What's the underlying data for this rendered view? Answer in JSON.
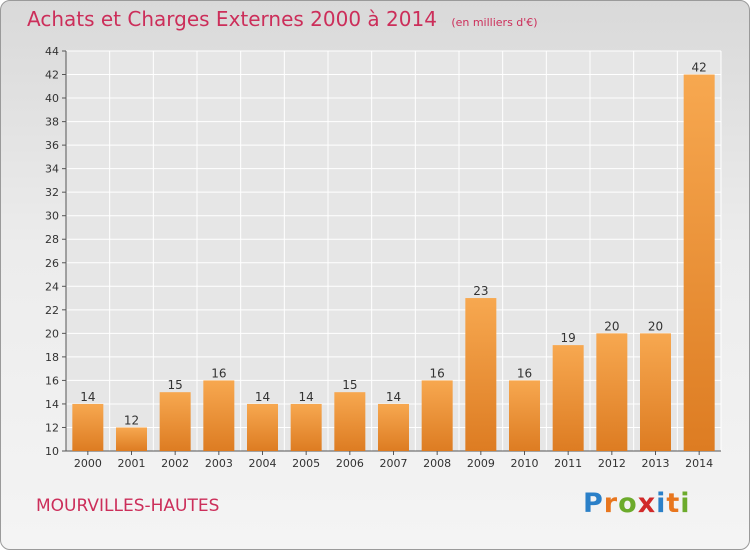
{
  "header": {
    "title": "Achats et Charges Externes 2000 à 2014",
    "subtitle": "(en milliers d'€)"
  },
  "footer": {
    "commune": "MOURVILLES-HAUTES",
    "logo_text": "Proxiti",
    "logo_colors": [
      "#2b80c8",
      "#e8761e",
      "#6cab2c",
      "#d12a2a",
      "#2b80c8",
      "#e8761e",
      "#6cab2c"
    ]
  },
  "chart_data": {
    "type": "bar",
    "title": "Achats et Charges Externes 2000 à 2014",
    "subtitle": "(en milliers d'€)",
    "categories": [
      "2000",
      "2001",
      "2002",
      "2003",
      "2004",
      "2005",
      "2006",
      "2007",
      "2008",
      "2009",
      "2010",
      "2011",
      "2012",
      "2013",
      "2014"
    ],
    "values": [
      14,
      12,
      15,
      16,
      14,
      14,
      15,
      14,
      16,
      23,
      16,
      19,
      20,
      20,
      42
    ],
    "ylim": [
      10,
      44
    ],
    "yticks": [
      10,
      12,
      14,
      16,
      18,
      20,
      22,
      24,
      26,
      28,
      30,
      32,
      34,
      36,
      38,
      40,
      42,
      44
    ],
    "grid": true,
    "bar_color": "#f39a3c",
    "bar_color_dark": "#d97a1e",
    "grid_color": "#ffffff",
    "xlabel": "",
    "ylabel": ""
  }
}
